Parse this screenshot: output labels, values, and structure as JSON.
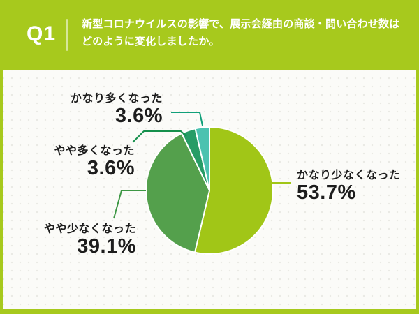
{
  "header": {
    "q_label": "Q1",
    "question_line1": "新型コロナウイルスの影響で、展示会経由の商談・問い合わせ数は",
    "question_line2": "どのように変化しましたか。",
    "band_color": "#a7c91d",
    "text_color": "#ffffff"
  },
  "panel": {
    "bg_color": "#fbfbf8",
    "dot_color": "#e9e9e4"
  },
  "chart_data": {
    "type": "pie",
    "title": "新型コロナウイルスの影響で、展示会経由の商談・問い合わせ数はどのように変化しましたか。",
    "direction": "clockwise",
    "start_angle_deg": 0,
    "total": 100,
    "slice_stroke_color": "#ffffff",
    "segments": [
      {
        "label": "かなり少なくなった",
        "value": 53.7,
        "display": "53.7%",
        "color": "#a1c617"
      },
      {
        "label": "やや少なくなった",
        "value": 39.1,
        "display": "39.1%",
        "color": "#54a04c"
      },
      {
        "label": "やや多くなった",
        "value": 3.6,
        "display": "3.6%",
        "color": "#279c66"
      },
      {
        "label": "かなり多くなった",
        "value": 3.6,
        "display": "3.6%",
        "color": "#4cc2b0"
      }
    ]
  },
  "callouts": [
    {
      "label": "かなり多くなった",
      "pct": "3.6%",
      "line_color": "#11a07a"
    },
    {
      "label": "やや多くなった",
      "pct": "3.6%",
      "line_color": "#15904c"
    },
    {
      "label": "やや少なくなった",
      "pct": "39.1%",
      "line_color": "#3d9744"
    },
    {
      "label": "かなり少なくなった",
      "pct": "53.7%",
      "line_color": "#a1c617"
    }
  ]
}
